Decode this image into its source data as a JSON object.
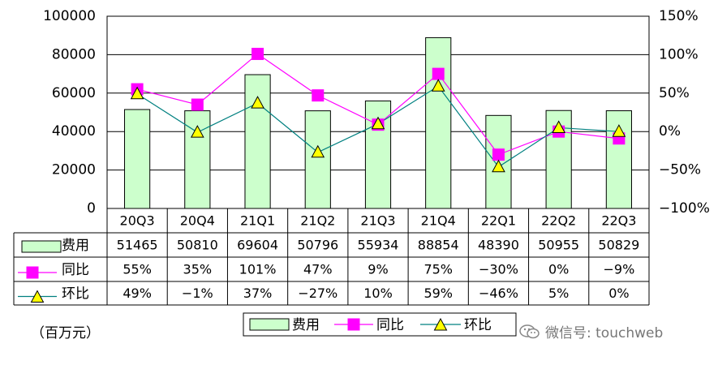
{
  "chart_data": {
    "type": "bar",
    "categories": [
      "20Q3",
      "20Q4",
      "21Q1",
      "21Q2",
      "21Q3",
      "21Q4",
      "22Q1",
      "22Q2",
      "22Q3"
    ],
    "left_axis": {
      "ylim": [
        0,
        100000
      ],
      "ticks": [
        "0",
        "20000",
        "40000",
        "60000",
        "80000",
        "100000"
      ]
    },
    "right_axis": {
      "ylim": [
        -100,
        150
      ],
      "ticks": [
        "−100%",
        "−50%",
        "0%",
        "50%",
        "100%",
        "150%"
      ]
    },
    "series": [
      {
        "name": "费用",
        "type": "bar",
        "axis": "left",
        "color": "#ccffcc",
        "values": [
          51465,
          50810,
          69604,
          50796,
          55934,
          88854,
          48390,
          50955,
          50829
        ],
        "labels": [
          "51465",
          "50810",
          "69604",
          "50796",
          "55934",
          "88854",
          "48390",
          "50955",
          "50829"
        ]
      },
      {
        "name": "同比",
        "type": "line",
        "axis": "right",
        "color": "#ff00ff",
        "marker": "square",
        "values": [
          55,
          35,
          101,
          47,
          9,
          75,
          -30,
          0,
          -9
        ],
        "labels": [
          "55%",
          "35%",
          "101%",
          "47%",
          "9%",
          "75%",
          "−30%",
          "0%",
          "−9%"
        ]
      },
      {
        "name": "环比",
        "type": "line",
        "axis": "right",
        "color": "#008080",
        "marker": "triangle",
        "marker_fill": "#ffff00",
        "values": [
          49,
          -1,
          37,
          -27,
          10,
          59,
          -46,
          5,
          0
        ],
        "labels": [
          "49%",
          "−1%",
          "37%",
          "−27%",
          "10%",
          "59%",
          "−46%",
          "5%",
          "0%"
        ]
      }
    ],
    "grid": true,
    "legend": "bottom-center",
    "unit_label": "（百万元）"
  },
  "watermark": "微信号: touchweb"
}
